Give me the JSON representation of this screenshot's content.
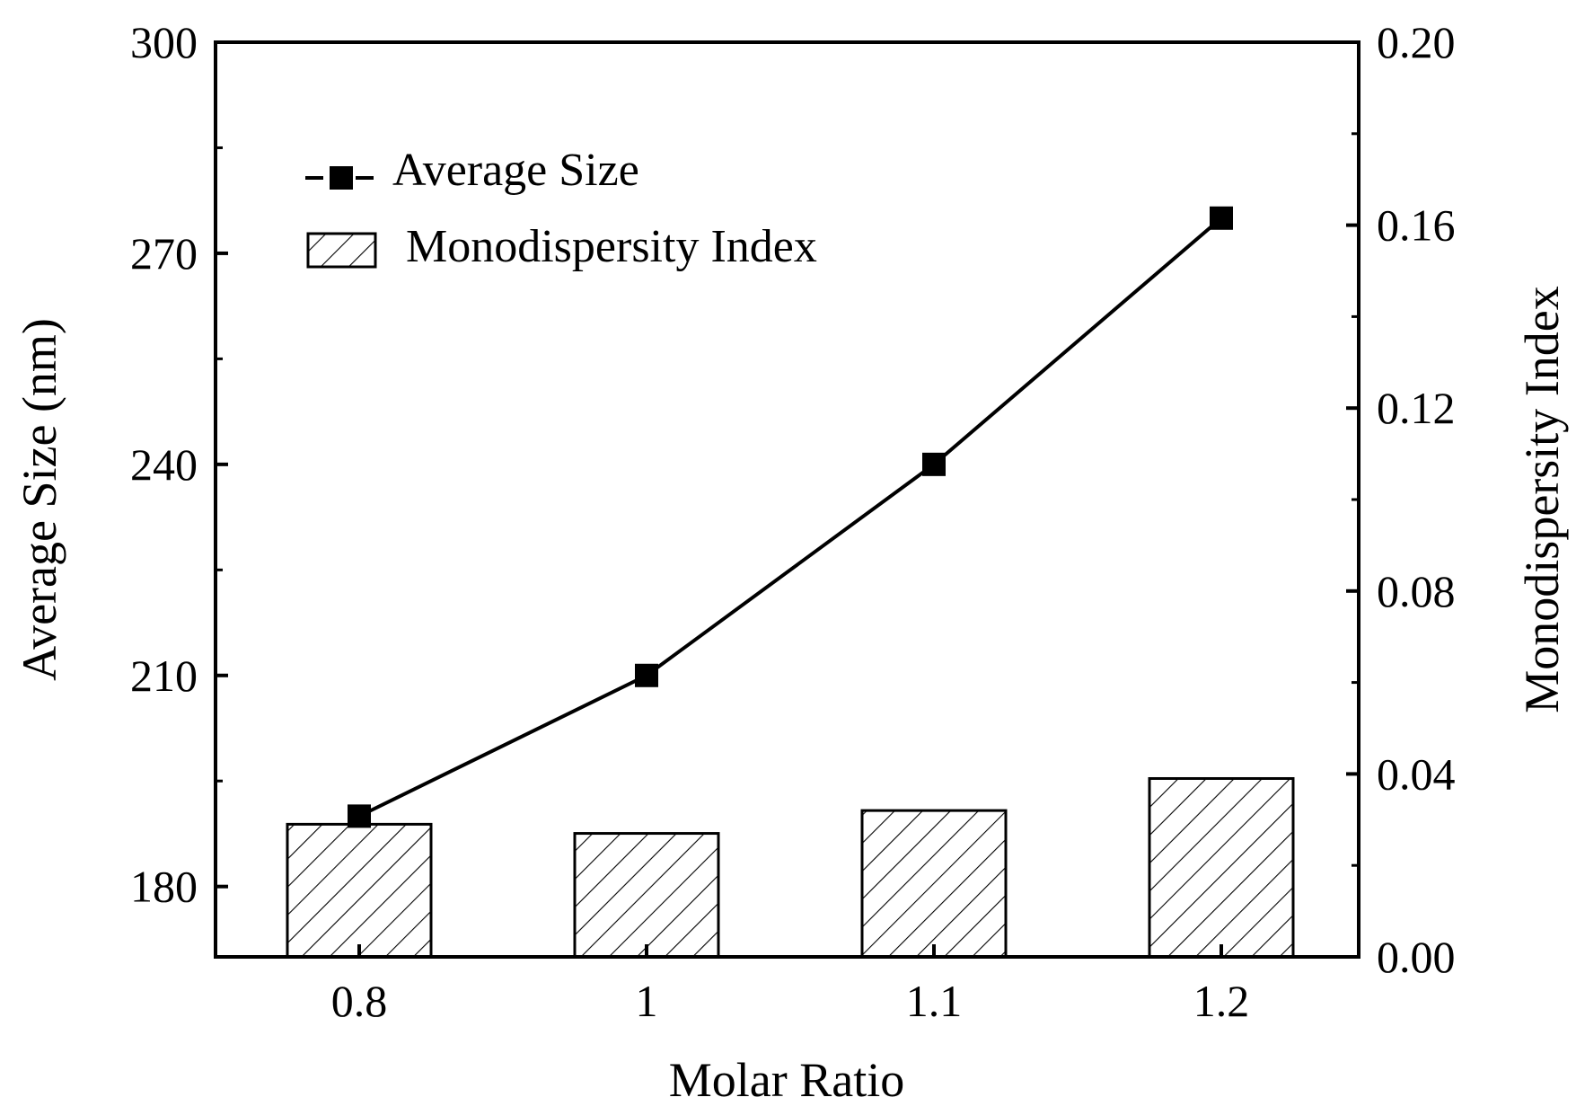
{
  "chart_data": {
    "type": "bar",
    "categories": [
      "0.8",
      "1",
      "1.1",
      "1.2"
    ],
    "series": [
      {
        "name": "Average Size",
        "kind": "line",
        "axis": "left",
        "marker": "square",
        "values": [
          190,
          210,
          240,
          275
        ]
      },
      {
        "name": "Monodispersity Index",
        "kind": "bar",
        "axis": "right",
        "pattern": "hatched",
        "values": [
          0.029,
          0.027,
          0.032,
          0.039
        ]
      }
    ],
    "xlabel": "Molar Ratio",
    "ylabel": "Average Size (nm)",
    "y2label": "Monodispersity Index",
    "ylim": [
      170,
      300
    ],
    "y2lim": [
      0.0,
      0.2
    ],
    "yticks": [
      "180",
      "210",
      "240",
      "270",
      "300"
    ],
    "y2ticks": [
      "0.00",
      "0.04",
      "0.08",
      "0.12",
      "0.16",
      "0.20"
    ],
    "legend_position": "top-left",
    "grid": false,
    "colors": {
      "line": "#000000",
      "bar_fill": "#ffffff",
      "hatch": "#000000"
    }
  }
}
